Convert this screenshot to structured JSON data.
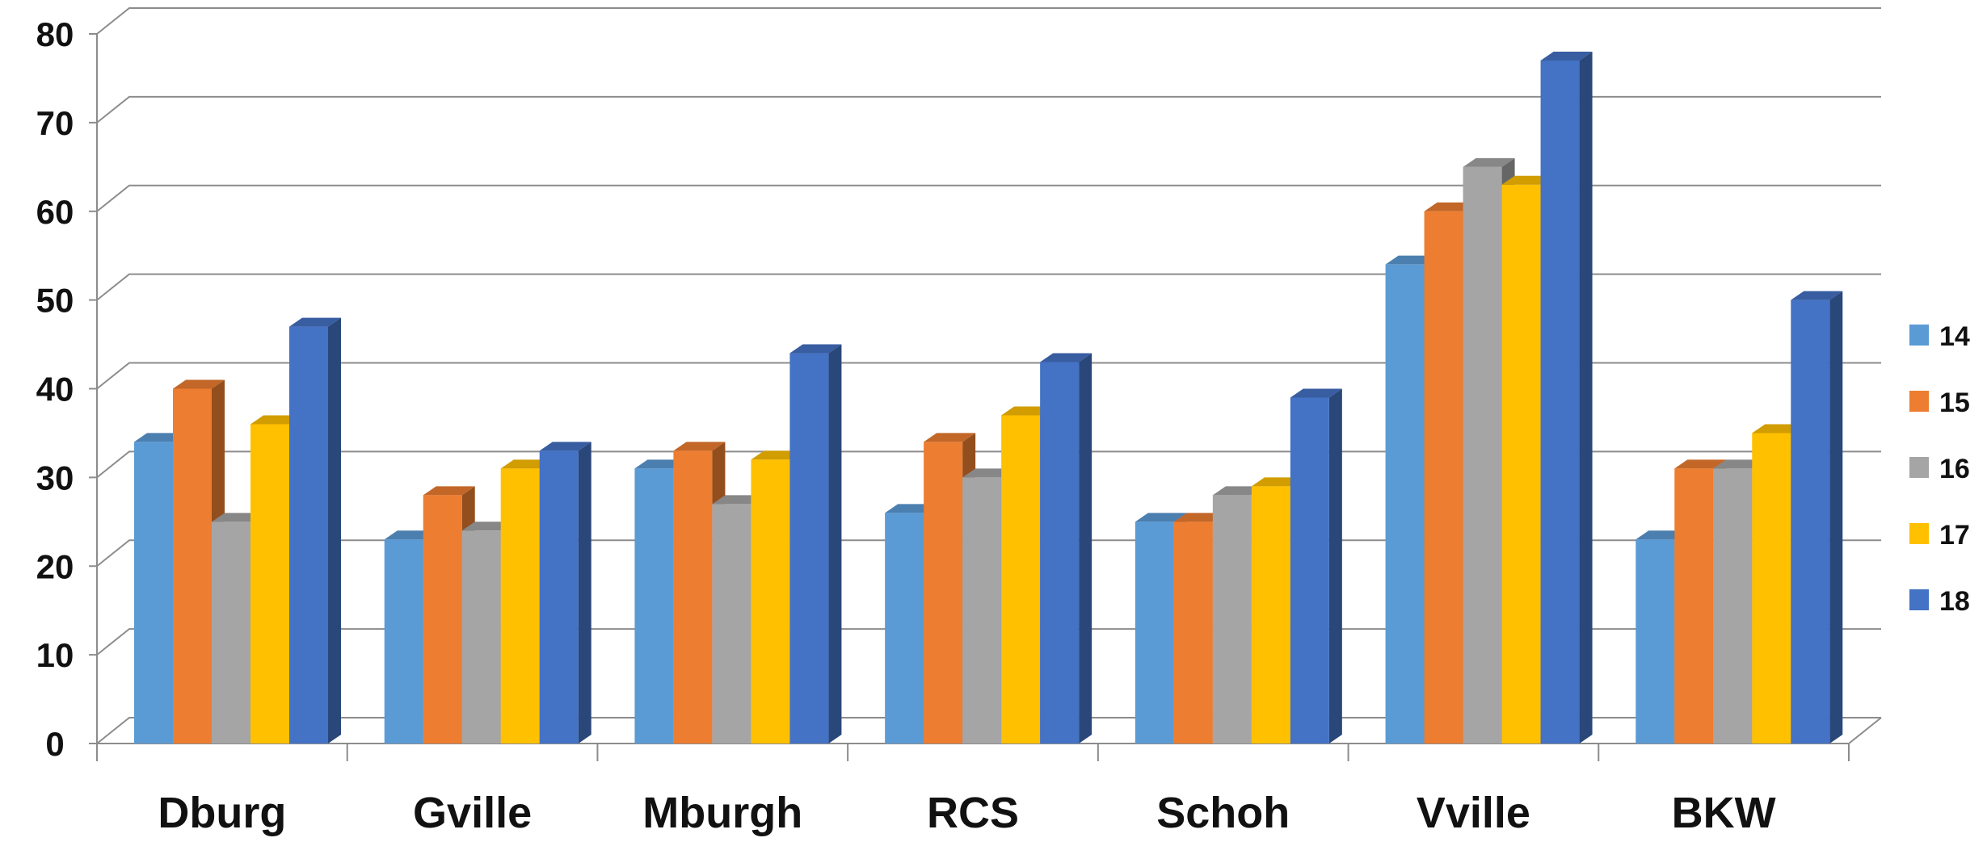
{
  "chart_data": {
    "type": "bar",
    "categories": [
      "Dburg",
      "Gville",
      "Mburgh",
      "RCS",
      "Schoh",
      "Vville",
      "BKW"
    ],
    "series": [
      {
        "name": "14",
        "color": "#5B9BD5",
        "values": [
          34,
          23,
          31,
          26,
          25,
          54,
          23
        ]
      },
      {
        "name": "15",
        "color": "#ED7D31",
        "values": [
          40,
          28,
          33,
          34,
          25,
          60,
          31
        ]
      },
      {
        "name": "16",
        "color": "#A5A5A5",
        "values": [
          25,
          24,
          27,
          30,
          28,
          65,
          31
        ]
      },
      {
        "name": "17",
        "color": "#FFC000",
        "values": [
          36,
          31,
          32,
          37,
          29,
          63,
          35
        ]
      },
      {
        "name": "18",
        "color": "#4472C4",
        "values": [
          47,
          33,
          44,
          43,
          39,
          77,
          50
        ]
      }
    ],
    "ylim": [
      0,
      80
    ],
    "yticks": [
      0,
      10,
      20,
      30,
      40,
      50,
      60,
      70,
      80
    ],
    "grid": true,
    "legend": "right",
    "style": "3d-clustered-column"
  }
}
